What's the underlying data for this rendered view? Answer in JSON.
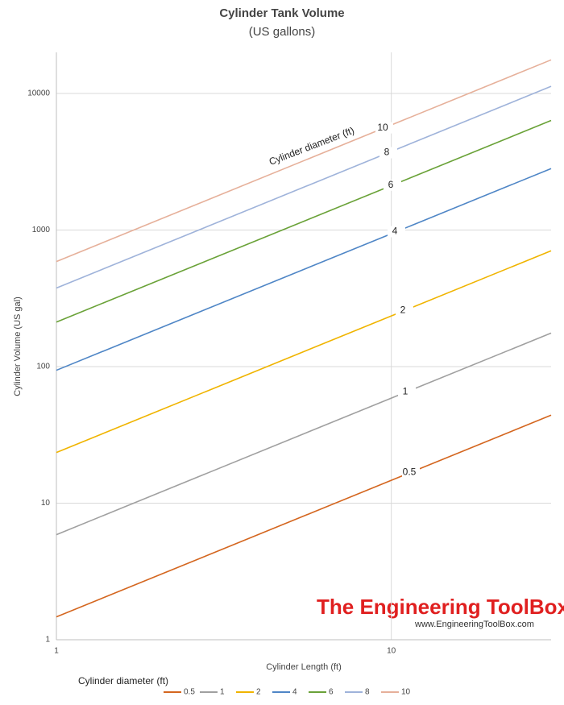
{
  "chart_data": {
    "type": "line",
    "title": "Cylinder Tank Volume",
    "subtitle": "(US gallons)",
    "x_label": "Cylinder Length (ft)",
    "y_label": "Cylinder Volume (US gal)",
    "annotation": "Cylinder diameter (ft)",
    "legend_title": "Cylinder diameter (ft)",
    "watermark": "The Engineering ToolBox",
    "watermark_url": "www.EngineeringToolBox.com",
    "x_log": true,
    "y_log": true,
    "grid": true,
    "legend": "bottom",
    "x": [
      1,
      10,
      30
    ],
    "xlim": [
      1,
      30
    ],
    "xticks": [
      1,
      10
    ],
    "ylim": [
      1,
      20000
    ],
    "yticks": [
      1,
      10,
      100,
      1000,
      10000
    ],
    "series": [
      {
        "name": "0.5",
        "color": "#d4661f",
        "values": [
          1.47,
          14.7,
          44.1
        ]
      },
      {
        "name": "1",
        "color": "#a0a0a0",
        "values": [
          5.88,
          58.8,
          176
        ]
      },
      {
        "name": "2",
        "color": "#f0b400",
        "values": [
          23.5,
          235,
          705
        ]
      },
      {
        "name": "4",
        "color": "#4f86c6",
        "values": [
          94,
          940,
          2820
        ]
      },
      {
        "name": "6",
        "color": "#6aa238",
        "values": [
          212,
          2115,
          6345
        ]
      },
      {
        "name": "8",
        "color": "#9fb3da",
        "values": [
          376,
          3760,
          11280
        ]
      },
      {
        "name": "10",
        "color": "#e6b09a",
        "values": [
          588,
          5875,
          17625
        ]
      }
    ]
  }
}
